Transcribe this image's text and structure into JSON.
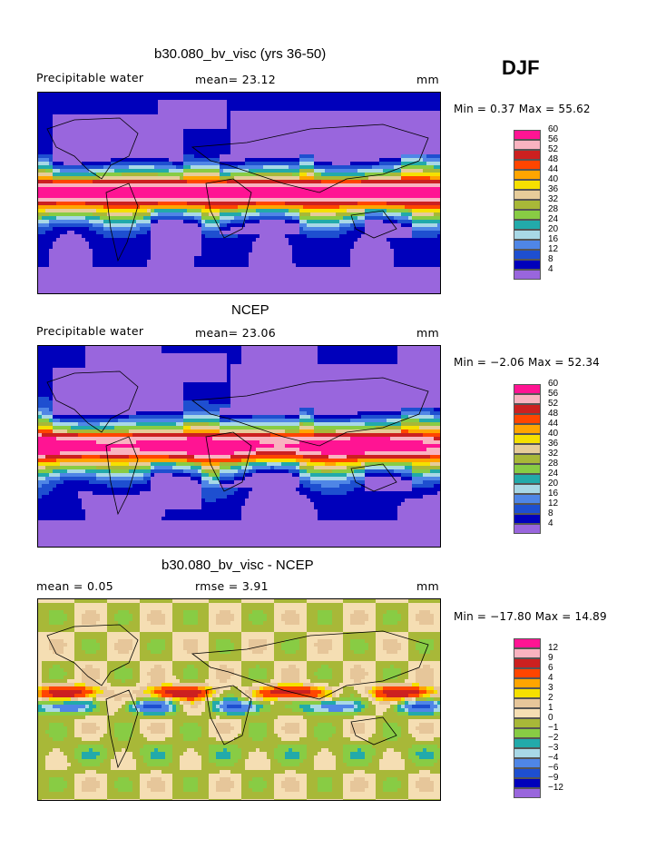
{
  "season": "DJF",
  "colors": {
    "abs": [
      "#9966dd",
      "#0000bb",
      "#1e4fd0",
      "#4f86e6",
      "#a8d8e6",
      "#22aaaa",
      "#88cc44",
      "#a8b838",
      "#e6cc9a",
      "#f5e000",
      "#ffa500",
      "#ff4500",
      "#cc2020",
      "#f9b3c0",
      "#ff1493"
    ],
    "diff": [
      "#9966dd",
      "#0000bb",
      "#1e4fd0",
      "#4f86e6",
      "#a8d8e6",
      "#22aaaa",
      "#88cc44",
      "#a8b838",
      "#f5deb3",
      "#e6c69a",
      "#f5e000",
      "#ffa500",
      "#ff4500",
      "#cc2020",
      "#f9b3c0",
      "#ff1493"
    ]
  },
  "panels": [
    {
      "title": "b30.080_bv_visc (yrs 36-50)",
      "left_label": "Precipitable water",
      "mid_label": "mean=  23.12",
      "unit": "mm",
      "minmax": "Min =   0.37 Max =  55.62",
      "legend_labels": [
        "4",
        "8",
        "12",
        "16",
        "20",
        "24",
        "28",
        "32",
        "36",
        "40",
        "44",
        "48",
        "52",
        "56",
        "60"
      ],
      "field": "model"
    },
    {
      "title": "NCEP",
      "left_label": "Precipitable water",
      "mid_label": "mean=  23.06",
      "unit": "mm",
      "minmax": "Min =  −2.06 Max =  52.34",
      "legend_labels": [
        "4",
        "8",
        "12",
        "16",
        "20",
        "24",
        "28",
        "32",
        "36",
        "40",
        "44",
        "48",
        "52",
        "56",
        "60"
      ],
      "field": "obs"
    },
    {
      "title": "b30.080_bv_visc - NCEP",
      "left_label": "mean =    0.05",
      "mid_label": "rmse =    3.91",
      "unit": "mm",
      "minmax": "Min = −17.80 Max =  14.89",
      "legend_labels": [
        "−12",
        "−9",
        "−6",
        "−4",
        "−3",
        "−2",
        "−1",
        "0",
        "1",
        "2",
        "3",
        "4",
        "6",
        "9",
        "12"
      ],
      "field": "diff"
    }
  ]
}
